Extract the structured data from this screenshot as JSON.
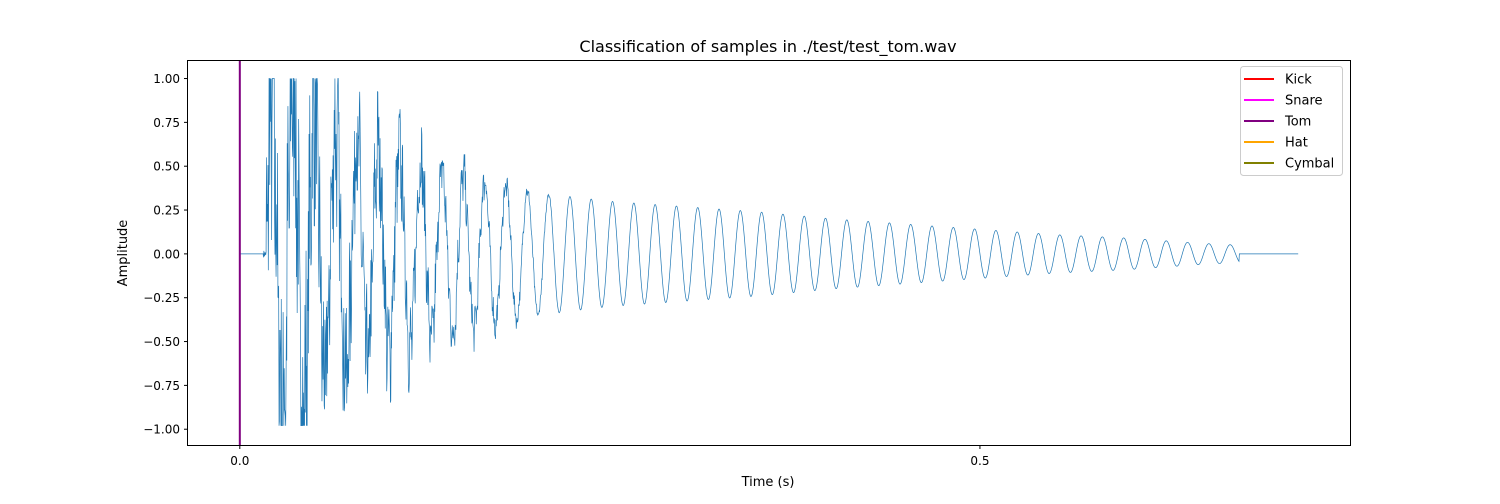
{
  "chart_data": {
    "type": "line",
    "title": "Classification of samples in ./test/test_tom.wav",
    "xlabel": "Time (s)",
    "ylabel": "Amplitude",
    "xlim": [
      -0.035,
      0.75
    ],
    "ylim": [
      -1.09,
      1.1
    ],
    "x_ticks": [
      0.0,
      0.5
    ],
    "x_tick_labels": [
      "0.0",
      "0.5"
    ],
    "y_ticks": [
      -1.0,
      -0.75,
      -0.5,
      -0.25,
      0.0,
      0.25,
      0.5,
      0.75,
      1.0
    ],
    "y_tick_labels": [
      "−1.00",
      "−0.75",
      "−0.50",
      "−0.25",
      "0.00",
      "0.25",
      "0.50",
      "0.75",
      "1.00"
    ],
    "grid": false,
    "legend_position": "top-right",
    "waveform": {
      "color": "#1f77b4",
      "silence_until": 0.016,
      "onset": 0.018,
      "end": 0.675,
      "tail_end": 0.715,
      "oscillation_hz": 69.5,
      "envelope": [
        {
          "t": 0.018,
          "amp": 0.85
        },
        {
          "t": 0.035,
          "amp": 0.98
        },
        {
          "t": 0.06,
          "amp": 0.72
        },
        {
          "t": 0.1,
          "amp": 0.58
        },
        {
          "t": 0.15,
          "amp": 0.45
        },
        {
          "t": 0.2,
          "amp": 0.35
        },
        {
          "t": 0.25,
          "amp": 0.3
        },
        {
          "t": 0.3,
          "amp": 0.27
        },
        {
          "t": 0.35,
          "amp": 0.24
        },
        {
          "t": 0.4,
          "amp": 0.2
        },
        {
          "t": 0.45,
          "amp": 0.17
        },
        {
          "t": 0.5,
          "amp": 0.14
        },
        {
          "t": 0.55,
          "amp": 0.11
        },
        {
          "t": 0.6,
          "amp": 0.09
        },
        {
          "t": 0.65,
          "amp": 0.06
        },
        {
          "t": 0.675,
          "amp": 0.05
        }
      ]
    },
    "legend": [
      {
        "label": "Kick",
        "color": "#ff0000"
      },
      {
        "label": "Snare",
        "color": "#ff00ff"
      },
      {
        "label": "Tom",
        "color": "#800080"
      },
      {
        "label": "Hat",
        "color": "#ffa500"
      },
      {
        "label": "Cymbal",
        "color": "#808000"
      }
    ],
    "markers": [
      {
        "class": "Tom",
        "time": 0.0,
        "color": "#800080"
      }
    ]
  }
}
